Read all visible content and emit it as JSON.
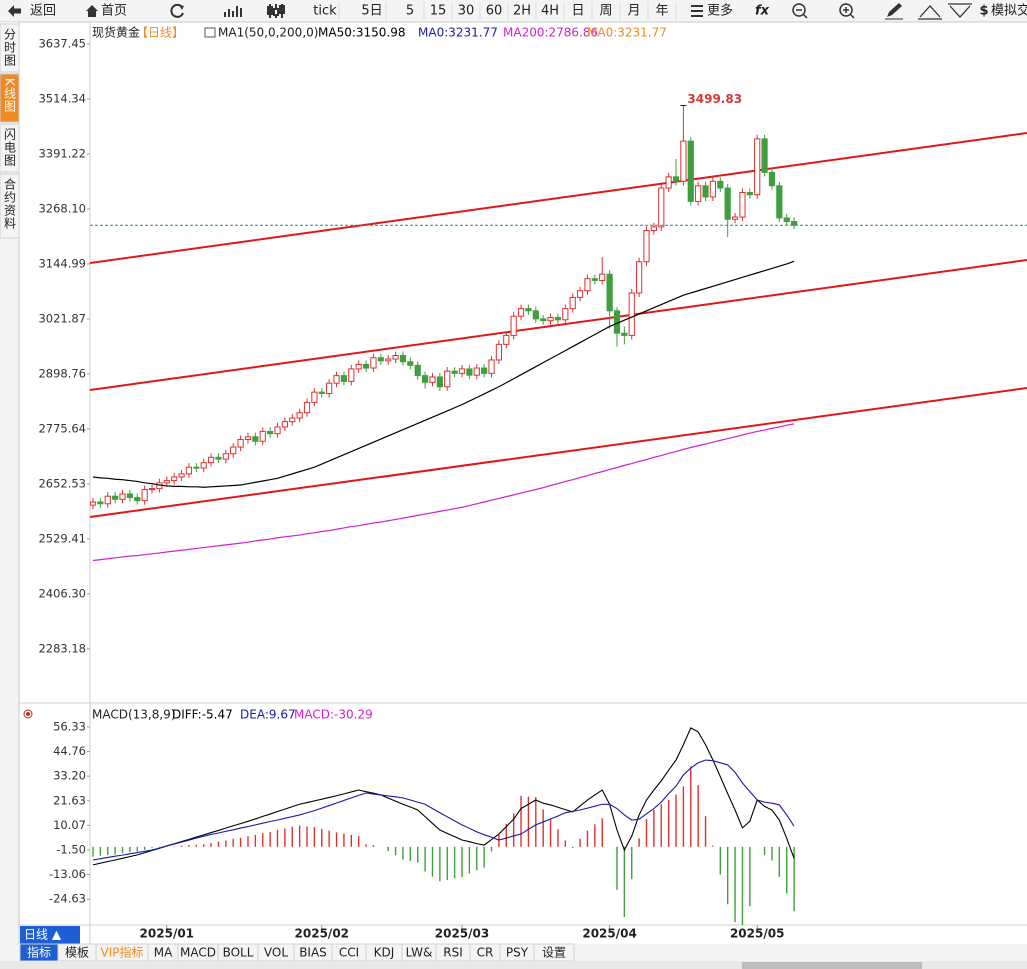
{
  "toolbar": {
    "back": "返回",
    "home": "首页",
    "buttons": [
      "tick",
      "5日",
      "5",
      "15",
      "30",
      "60",
      "2H",
      "4H",
      "日",
      "周",
      "月",
      "年"
    ],
    "more": "更多",
    "fx": "fx",
    "sim": "模拟交"
  },
  "side_tabs": [
    "分时图",
    "K线图",
    "闪电图",
    "合约资料"
  ],
  "bottom": {
    "period": "日线 ▲",
    "tabs": [
      "指标",
      "模板",
      "VIP指标",
      "MA",
      "MACD",
      "BOLL",
      "VOL",
      "BIAS",
      "CCI",
      "KDJ",
      "LW&",
      "RSI",
      "CR",
      "PSY",
      "设置"
    ]
  },
  "chart_data": [
    {
      "type": "candlestick",
      "title": "现货黄金",
      "period": "【日线】",
      "indicator": "MA1(50,0,200,0)",
      "info": [
        {
          "text": "MA50:3150.98",
          "color": "#000000"
        },
        {
          "text": "MA0:3231.77",
          "color": "#1a1aa6"
        },
        {
          "text": "MA200:2786.86",
          "color": "#d21ed2"
        },
        {
          "text": "MA0:3231.77",
          "color": "#f08a24"
        }
      ],
      "up_color": "#e03030",
      "down_color": "#3f9f3f",
      "categories": [
        null,
        null,
        null,
        null,
        null,
        null,
        null,
        null,
        null,
        null,
        "2025/01",
        null,
        null,
        null,
        null,
        null,
        null,
        null,
        null,
        null,
        null,
        null,
        null,
        null,
        null,
        null,
        null,
        null,
        null,
        null,
        null,
        "2025/02",
        null,
        null,
        null,
        null,
        null,
        null,
        null,
        null,
        null,
        null,
        null,
        null,
        null,
        null,
        null,
        null,
        null,
        null,
        "2025/03",
        null,
        null,
        null,
        null,
        null,
        null,
        null,
        null,
        null,
        null,
        null,
        null,
        null,
        null,
        null,
        null,
        null,
        null,
        null,
        "2025/04",
        null,
        null,
        null,
        null,
        null,
        null,
        null,
        null,
        null,
        null,
        null,
        null,
        null,
        null,
        null,
        null,
        null,
        null,
        null,
        "2025/05",
        null,
        null,
        null,
        null,
        null
      ],
      "open": [
        2605,
        2612,
        2608,
        2625,
        2618,
        2630,
        2622,
        2615,
        2640,
        2642,
        2655,
        2660,
        2668,
        2675,
        2690,
        2688,
        2700,
        2712,
        2708,
        2720,
        2735,
        2752,
        2758,
        2748,
        2770,
        2765,
        2780,
        2792,
        2800,
        2812,
        2835,
        2858,
        2855,
        2878,
        2895,
        2882,
        2910,
        2920,
        2912,
        2935,
        2928,
        2932,
        2940,
        2926,
        2918,
        2895,
        2880,
        2892,
        2870,
        2905,
        2900,
        2910,
        2896,
        2912,
        2900,
        2930,
        2965,
        2985,
        3028,
        3045,
        3040,
        3022,
        3018,
        3025,
        3020,
        3045,
        3070,
        3085,
        3112,
        3108,
        3122,
        3040,
        2990,
        2985,
        3080,
        3150,
        3220,
        3228,
        3315,
        3340,
        3330,
        3420,
        3285,
        3320,
        3295,
        3330,
        3315,
        3245,
        3250,
        3305,
        3300,
        3425,
        3350,
        3320,
        3248,
        3240
      ],
      "high": [
        2621,
        2621,
        2634,
        2634,
        2639,
        2639,
        2631,
        2649,
        2651,
        2664,
        2669,
        2677,
        2684,
        2699,
        2699,
        2709,
        2721,
        2721,
        2729,
        2744,
        2761,
        2767,
        2767,
        2779,
        2779,
        2789,
        2801,
        2809,
        2821,
        2844,
        2867,
        2867,
        2887,
        2904,
        2904,
        2919,
        2929,
        2929,
        2944,
        2944,
        2941,
        2949,
        2949,
        2935,
        2927,
        2904,
        2901,
        2901,
        2914,
        2914,
        2919,
        2919,
        2921,
        2921,
        2939,
        2974,
        2994,
        3037,
        3054,
        3054,
        3049,
        3031,
        3034,
        3034,
        3054,
        3079,
        3094,
        3121,
        3121,
        3160,
        3131,
        3049,
        3005,
        3089,
        3159,
        3229,
        3237,
        3324,
        3349,
        3380,
        3499.83,
        3429,
        3329,
        3329,
        3339,
        3339,
        3324,
        3259,
        3314,
        3314,
        3434,
        3434,
        3359,
        3329,
        3257,
        3249
      ],
      "low": [
        2596,
        2599,
        2599,
        2609,
        2609,
        2613,
        2606,
        2606,
        2631,
        2633,
        2646,
        2651,
        2659,
        2666,
        2679,
        2679,
        2691,
        2699,
        2699,
        2711,
        2726,
        2743,
        2739,
        2739,
        2756,
        2756,
        2771,
        2783,
        2791,
        2803,
        2826,
        2846,
        2846,
        2869,
        2873,
        2873,
        2901,
        2903,
        2903,
        2919,
        2919,
        2923,
        2917,
        2909,
        2886,
        2866,
        2871,
        2861,
        2861,
        2891,
        2891,
        2887,
        2887,
        2891,
        2891,
        2921,
        2956,
        2976,
        3019,
        3031,
        3013,
        3009,
        3009,
        3011,
        3011,
        3036,
        3061,
        3076,
        3099,
        3099,
        3000,
        2960,
        2965,
        2976,
        3071,
        3141,
        3211,
        3219,
        3306,
        3321,
        3321,
        3276,
        3276,
        3286,
        3286,
        3306,
        3205,
        3236,
        3241,
        3291,
        3291,
        3341,
        3311,
        3239,
        3231,
        3223
      ],
      "close": [
        2612,
        2608,
        2625,
        2618,
        2630,
        2622,
        2615,
        2640,
        2642,
        2655,
        2660,
        2668,
        2675,
        2690,
        2688,
        2700,
        2712,
        2708,
        2720,
        2735,
        2752,
        2758,
        2748,
        2770,
        2765,
        2780,
        2792,
        2800,
        2812,
        2835,
        2858,
        2855,
        2878,
        2895,
        2882,
        2910,
        2920,
        2912,
        2935,
        2928,
        2932,
        2940,
        2926,
        2918,
        2895,
        2880,
        2892,
        2870,
        2905,
        2900,
        2910,
        2896,
        2912,
        2900,
        2930,
        2965,
        2985,
        3028,
        3045,
        3040,
        3022,
        3018,
        3025,
        3020,
        3045,
        3070,
        3085,
        3112,
        3108,
        3122,
        3040,
        2990,
        2985,
        3080,
        3150,
        3220,
        3228,
        3315,
        3340,
        3330,
        3420,
        3285,
        3320,
        3295,
        3330,
        3315,
        3245,
        3250,
        3305,
        3300,
        3425,
        3350,
        3320,
        3248,
        3240,
        3231.77
      ],
      "series": [
        {
          "name": "MA50",
          "color": "#000000",
          "values": [
            2668,
            2666,
            2665,
            2663,
            2662,
            2660,
            2658,
            2655,
            2653,
            2650,
            2648,
            2647,
            2647,
            2646,
            2646,
            2645,
            2646,
            2647,
            2648,
            2649,
            2650,
            2653,
            2656,
            2659,
            2662,
            2665,
            2670,
            2675,
            2680,
            2685,
            2690,
            2697,
            2704,
            2711,
            2718,
            2725,
            2732,
            2739,
            2746,
            2753,
            2760,
            2767,
            2774,
            2781,
            2788,
            2795,
            2802,
            2809,
            2816,
            2823,
            2830,
            2838,
            2846,
            2854,
            2862,
            2870,
            2879,
            2888,
            2897,
            2906,
            2915,
            2924,
            2933,
            2942,
            2951,
            2960,
            2969,
            2978,
            2987,
            2996,
            3005,
            3012,
            3019,
            3026,
            3033,
            3040,
            3047,
            3054,
            3061,
            3068,
            3075,
            3080,
            3085,
            3090,
            3095,
            3100,
            3105,
            3110,
            3115,
            3120,
            3125,
            3130,
            3135,
            3140,
            3145,
            3151
          ]
        },
        {
          "name": "MA200",
          "color": "#d21ed2",
          "values": [
            2481,
            2483,
            2485,
            2487,
            2489,
            2491,
            2492,
            2494,
            2496,
            2498,
            2500,
            2502,
            2504,
            2506,
            2508,
            2510,
            2512,
            2514,
            2516,
            2518,
            2520,
            2522,
            2525,
            2527,
            2529,
            2532,
            2534,
            2536,
            2538,
            2541,
            2543,
            2546,
            2548,
            2551,
            2554,
            2557,
            2559,
            2562,
            2565,
            2567,
            2570,
            2573,
            2576,
            2579,
            2582,
            2585,
            2588,
            2591,
            2594,
            2597,
            2600,
            2604,
            2608,
            2612,
            2616,
            2620,
            2624,
            2628,
            2632,
            2636,
            2640,
            2644,
            2649,
            2653,
            2658,
            2662,
            2667,
            2671,
            2676,
            2680,
            2685,
            2689,
            2694,
            2698,
            2703,
            2707,
            2712,
            2716,
            2721,
            2725,
            2730,
            2734,
            2738,
            2742,
            2746,
            2750,
            2754,
            2758,
            2762,
            2766,
            2770,
            2773,
            2777,
            2780,
            2784,
            2787
          ]
        }
      ],
      "ylim": [
        2168.7,
        3686.7
      ],
      "yticks": [
        3637.45,
        3514.34,
        3391.22,
        {
          "value": 3268.1,
          "label": "3268.10"
        },
        3144.99,
        3021.87,
        2898.76,
        2775.64,
        2652.53,
        2529.41,
        {
          "value": 2406.3,
          "label": "2406.30"
        },
        2283.18
      ]
    },
    {
      "type": "macd",
      "title": "MACD(13,8,9)",
      "info": [
        {
          "text": "DIFF:-5.47",
          "color": "#000000"
        },
        {
          "text": "DEA:9.67",
          "color": "#1a1aa6"
        },
        {
          "text": "MACD:-30.29",
          "color": "#d21ed2"
        }
      ],
      "series": [
        {
          "name": "DIFF",
          "color": "#000000",
          "values": [
            -8.5,
            -7.7,
            -6.9,
            -6.2,
            -5.4,
            -4.6,
            -3.8,
            -2.8,
            -1.7,
            -0.7,
            0.4,
            1.4,
            2.5,
            3.5,
            4.6,
            5.6,
            6.7,
            7.7,
            8.8,
            9.9,
            10.9,
            12,
            13.1,
            14.3,
            15.4,
            16.6,
            17.7,
            18.9,
            20,
            20.8,
            21.6,
            22.4,
            23.2,
            24,
            24.9,
            25.8,
            26.7,
            25.9,
            25.2,
            24.4,
            22.9,
            21.5,
            20,
            18.7,
            17.3,
            14.2,
            11,
            7.9,
            6.3,
            4.8,
            3.2,
            2.4,
            1.5,
            0.8,
            3.4,
            6,
            9.5,
            13,
            18,
            20,
            22,
            20.5,
            19.7,
            18.6,
            17.5,
            16.4,
            19.2,
            22,
            24.4,
            26.7,
            20,
            7.9,
            -1.5,
            5,
            15,
            22,
            26.7,
            31,
            36,
            40.8,
            48,
            55.9,
            54,
            48,
            40.8,
            33,
            25,
            17.3,
            8.9,
            12,
            22,
            19,
            17.3,
            12.6,
            4,
            -5.47
          ]
        },
        {
          "name": "DEA",
          "color": "#1a1aa6",
          "values": [
            -6.2,
            -5.6,
            -5,
            -4.4,
            -3.9,
            -3.3,
            -2.7,
            -2.1,
            -1.5,
            -0.6,
            0.4,
            1.3,
            2.2,
            3.1,
            4.1,
            5,
            5.8,
            6.5,
            7.3,
            8,
            8.8,
            9.5,
            10.3,
            11.1,
            11.9,
            12.6,
            13.4,
            14.2,
            15,
            16,
            17,
            18.2,
            19.4,
            20.6,
            21.8,
            23,
            24.2,
            25.3,
            24.8,
            24.4,
            23.9,
            23.5,
            23,
            22,
            21,
            20,
            18,
            16,
            14.1,
            12.2,
            10.3,
            8.7,
            7,
            5.7,
            4.5,
            3.2,
            4.1,
            5.1,
            6,
            8.2,
            10.3,
            11.7,
            13.1,
            14.5,
            16,
            16.7,
            17.3,
            18.2,
            19.1,
            20,
            20,
            18,
            15,
            12.6,
            13,
            15.5,
            18,
            21,
            25,
            28.5,
            33.8,
            37,
            39.5,
            40.8,
            40.5,
            39.5,
            38.5,
            35,
            30,
            26,
            22,
            21,
            20.5,
            19.7,
            15,
            9.67
          ]
        },
        {
          "name": "MACD",
          "color": "#e03030",
          "neg_color": "#3f9f3f",
          "values": [
            -4.6,
            -4.2,
            -3.8,
            -3.6,
            -3,
            -2.6,
            -2.2,
            -1.4,
            -0.4,
            -0.2,
            0,
            0.2,
            0.6,
            0.8,
            1,
            1.2,
            1.8,
            2.4,
            3,
            3.8,
            4.2,
            5,
            5.6,
            6.4,
            7,
            8,
            8.6,
            9.4,
            10,
            9.6,
            9.2,
            8.4,
            7.6,
            6.8,
            6.2,
            5.6,
            5,
            1.2,
            0.8,
            0,
            -2,
            -4,
            -6,
            -6.6,
            -7.4,
            -11.6,
            -14,
            -16.2,
            -15.6,
            -14.8,
            -14.2,
            -12.6,
            -11,
            -9.8,
            -2.2,
            5.6,
            10.8,
            15.8,
            24,
            23.6,
            23.4,
            17.6,
            13.2,
            8.2,
            3,
            -0.6,
            3.8,
            7.6,
            10.6,
            13.4,
            0,
            -20.2,
            -33,
            -15.2,
            4,
            13,
            17.4,
            20,
            22,
            24.6,
            28.4,
            37.8,
            29,
            14.4,
            0.6,
            -13,
            -27,
            -35.4,
            -42.2,
            -28,
            0,
            -4,
            -6.4,
            -14.2,
            -22,
            -30.29
          ]
        }
      ],
      "ylim": [
        -36.76,
        60.56
      ],
      "yticks": [
        56.33,
        44.76,
        {
          "value": 33.2,
          "label": "33.20"
        },
        21.63,
        10.07,
        {
          "value": -1.5,
          "label": "-1.50"
        },
        -13.06,
        -24.63
      ]
    }
  ]
}
